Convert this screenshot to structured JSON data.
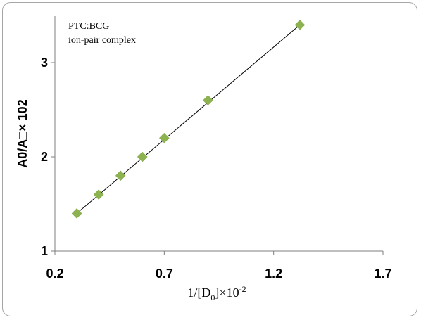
{
  "chart_data": {
    "type": "scatter",
    "title": "",
    "annotation": [
      "PTC:BCG",
      "ion-pair complex"
    ],
    "ylabel": "A0/A□× 102",
    "xlabel_base": "1/[D",
    "xlabel_sub": "0",
    "xlabel_mid": "]×10",
    "xlabel_sup": "-2",
    "xlim": [
      0.2,
      1.7
    ],
    "ylim": [
      1,
      3.5
    ],
    "x_ticks": [
      0.2,
      0.7,
      1.2,
      1.7
    ],
    "x_tick_labels": [
      "0.2",
      "0.7",
      "1.2",
      "1.7"
    ],
    "y_ticks": [
      1,
      2,
      3
    ],
    "y_tick_labels": [
      "1",
      "2",
      "3"
    ],
    "grid": false,
    "marker": "diamond",
    "marker_color": "#8db350",
    "x": [
      0.3,
      0.4,
      0.5,
      0.6,
      0.7,
      0.9,
      1.32
    ],
    "y": [
      1.4,
      1.6,
      1.8,
      2.0,
      2.2,
      2.6,
      3.4
    ],
    "trendline": {
      "x": [
        0.3,
        1.32
      ],
      "y": [
        1.4,
        3.4
      ]
    }
  }
}
